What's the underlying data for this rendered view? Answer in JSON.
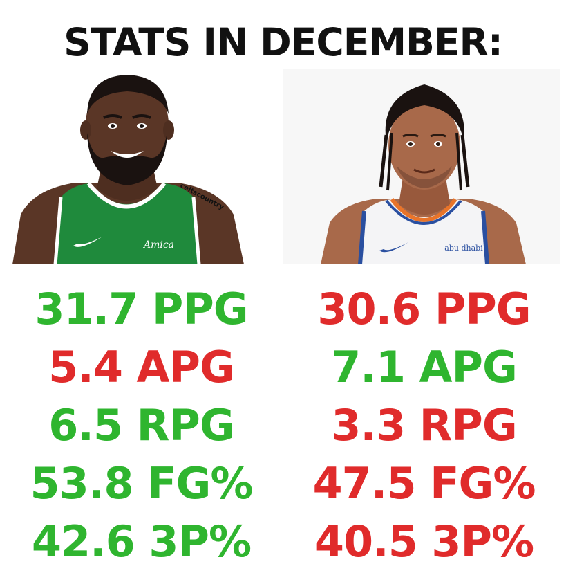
{
  "title": "STATS IN DECEMBER:",
  "watermark": "celtscountry",
  "colors": {
    "better": "#2fb52f",
    "worse": "#e02b2b"
  },
  "players": [
    {
      "jersey_text": "Amica",
      "jersey_color": "#1f8a3c",
      "stats": [
        {
          "label": "31.7 PPG",
          "status": "better"
        },
        {
          "label": "5.4 APG",
          "status": "worse"
        },
        {
          "label": "6.5 RPG",
          "status": "better"
        },
        {
          "label": "53.8 FG%",
          "status": "better"
        },
        {
          "label": "42.6 3P%",
          "status": "better"
        }
      ]
    },
    {
      "jersey_text": "abu dhabi",
      "jersey_color": "#f4f4f6",
      "stats": [
        {
          "label": "30.6 PPG",
          "status": "worse"
        },
        {
          "label": "7.1 APG",
          "status": "better"
        },
        {
          "label": "3.3 RPG",
          "status": "worse"
        },
        {
          "label": "47.5 FG%",
          "status": "worse"
        },
        {
          "label": "40.5 3P%",
          "status": "worse"
        }
      ]
    }
  ]
}
